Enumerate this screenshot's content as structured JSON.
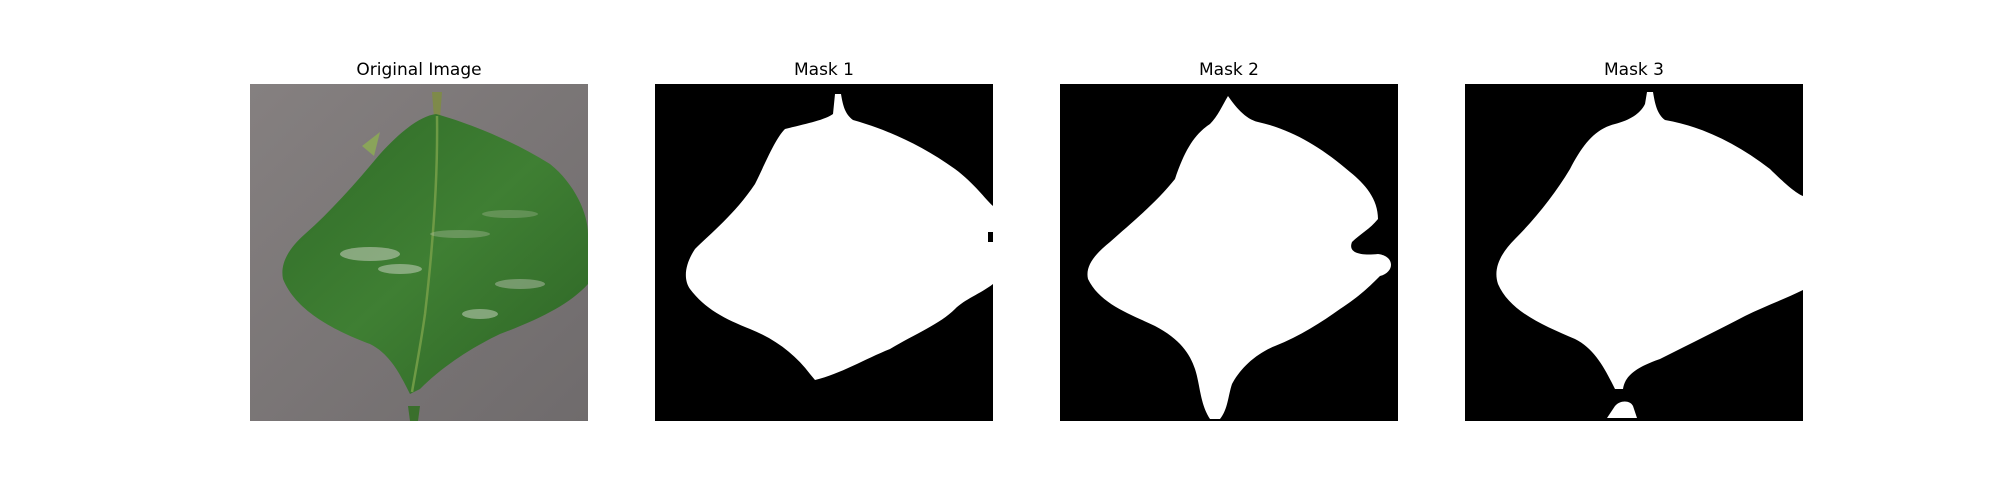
{
  "panels": [
    {
      "title": "Original Image",
      "kind": "photo"
    },
    {
      "title": "Mask 1",
      "kind": "mask"
    },
    {
      "title": "Mask 2",
      "kind": "mask"
    },
    {
      "title": "Mask 3",
      "kind": "mask"
    }
  ],
  "colors": {
    "mask_background": "#000000",
    "mask_foreground": "#ffffff",
    "photo_background": "#7b7777",
    "leaf": "#3c7a2f"
  }
}
